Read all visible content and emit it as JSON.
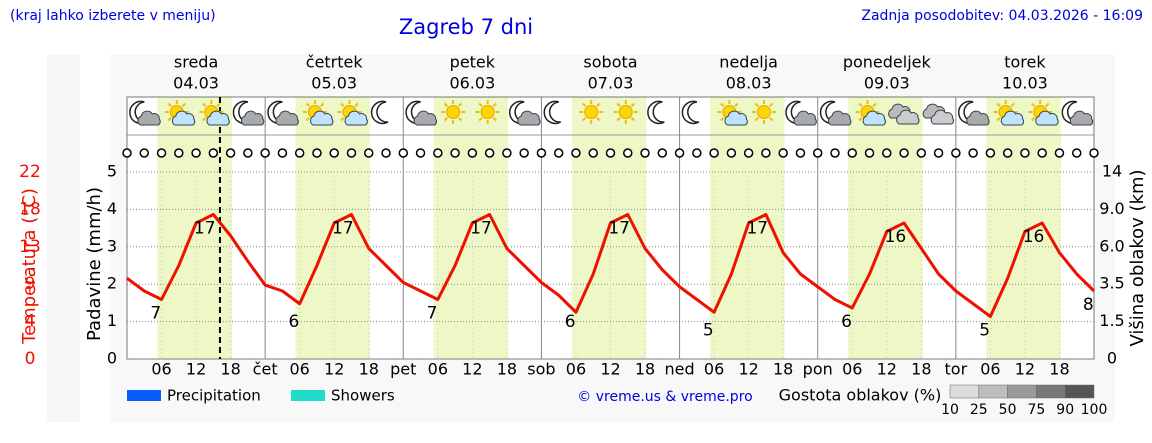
{
  "chart_data": {
    "type": "line",
    "title": "Zagreb 7 dni",
    "note": "(kraj lahko izberete v meniju)",
    "updated": "Zadnja posodobitev: 04.03.2026 - 16:09",
    "credit": "© vreme.us & vreme.pro",
    "days": [
      {
        "name": "sreda",
        "date": "04.03",
        "color": "#000000"
      },
      {
        "name": "četrtek",
        "date": "05.03",
        "color": "#000000"
      },
      {
        "name": "petek",
        "date": "06.03",
        "color": "#000000"
      },
      {
        "name": "sobota",
        "date": "07.03",
        "color": "#dd0000"
      },
      {
        "name": "nedelja",
        "date": "08.03",
        "color": "#dd0000"
      },
      {
        "name": "ponedeljek",
        "date": "09.03",
        "color": "#000000"
      },
      {
        "name": "torek",
        "date": "10.03",
        "color": "#000000"
      }
    ],
    "xlim": [
      0,
      168
    ],
    "xticks": [
      {
        "value": 6,
        "label": "06"
      },
      {
        "value": 12,
        "label": "12"
      },
      {
        "value": 18,
        "label": "18"
      },
      {
        "value": 24,
        "label": "čet"
      },
      {
        "value": 30,
        "label": "06"
      },
      {
        "value": 36,
        "label": "12"
      },
      {
        "value": 42,
        "label": "18"
      },
      {
        "value": 48,
        "label": "pet"
      },
      {
        "value": 54,
        "label": "06"
      },
      {
        "value": 60,
        "label": "12"
      },
      {
        "value": 66,
        "label": "18"
      },
      {
        "value": 72,
        "label": "sob"
      },
      {
        "value": 78,
        "label": "06"
      },
      {
        "value": 84,
        "label": "12"
      },
      {
        "value": 90,
        "label": "18"
      },
      {
        "value": 96,
        "label": "ned"
      },
      {
        "value": 102,
        "label": "06"
      },
      {
        "value": 108,
        "label": "12"
      },
      {
        "value": 114,
        "label": "18"
      },
      {
        "value": 120,
        "label": "pon"
      },
      {
        "value": 126,
        "label": "06"
      },
      {
        "value": 132,
        "label": "12"
      },
      {
        "value": 138,
        "label": "18"
      },
      {
        "value": 144,
        "label": "tor"
      },
      {
        "value": 150,
        "label": "06"
      },
      {
        "value": 156,
        "label": "12"
      },
      {
        "value": 162,
        "label": "18"
      }
    ],
    "now": 16.15,
    "ylabel": "Padavine (mm/h)",
    "ylim": [
      0,
      5
    ],
    "yticks": [
      0,
      1,
      2,
      3,
      4,
      5
    ],
    "grid": true,
    "temperature": {
      "label": "Temperatura (°C)",
      "color": "#ee1100",
      "ylim": [
        0,
        22
      ],
      "yticks": [
        0,
        {
          "value": 4.4,
          "label": "4"
        },
        {
          "value": 8.8,
          "label": "9"
        },
        {
          "value": 13.2,
          "label": "13"
        },
        {
          "value": 17.6,
          "label": "18"
        },
        22
      ],
      "x": [
        0,
        3,
        6,
        9,
        12,
        15,
        18,
        21,
        24,
        27,
        30,
        33,
        36,
        39,
        42,
        45,
        48,
        51,
        54,
        57,
        60,
        63,
        66,
        69,
        72,
        75,
        78,
        81,
        84,
        87,
        90,
        93,
        96,
        99,
        102,
        105,
        108,
        111,
        114,
        117,
        120,
        123,
        126,
        129,
        132,
        135,
        138,
        141,
        144,
        147,
        150,
        153,
        156,
        159,
        162,
        165,
        168
      ],
      "values": [
        9.5,
        8,
        7,
        11,
        16,
        17,
        14.5,
        11.5,
        8.7,
        8,
        6.5,
        11,
        16,
        17,
        13,
        11,
        9,
        8,
        7,
        11,
        16,
        17,
        13,
        11,
        9,
        7.5,
        5.5,
        10,
        16,
        17,
        13,
        10.5,
        8.5,
        7,
        5.5,
        10,
        16,
        17,
        12.5,
        10,
        8.5,
        7,
        6,
        10,
        15,
        16,
        13,
        10,
        8,
        6.5,
        5,
        9.5,
        15,
        16,
        12.5,
        10,
        8
      ],
      "labels": [
        {
          "x": 5,
          "value": 7
        },
        {
          "x": 13.5,
          "value": 17
        },
        {
          "x": 29,
          "value": 6
        },
        {
          "x": 37.5,
          "value": 17
        },
        {
          "x": 53,
          "value": 7
        },
        {
          "x": 61.5,
          "value": 17
        },
        {
          "x": 77,
          "value": 6
        },
        {
          "x": 85.5,
          "value": 17
        },
        {
          "x": 101,
          "value": 5
        },
        {
          "x": 109.5,
          "value": 17
        },
        {
          "x": 125,
          "value": 6
        },
        {
          "x": 133.5,
          "value": 16
        },
        {
          "x": 149,
          "value": 5
        },
        {
          "x": 157.5,
          "value": 16
        },
        {
          "x": 167,
          "value": 8
        }
      ]
    },
    "cloud_height": {
      "label": "Višina oblakov (km)",
      "ticks": [
        0,
        1.5,
        3.5,
        {
          "value": 6,
          "label": "6.0"
        },
        {
          "value": 9,
          "label": "9.0"
        },
        14
      ]
    },
    "legend": [
      {
        "name": "Precipitation",
        "color": "#0a5cff"
      },
      {
        "name": "Showers",
        "color": "#1fdcc8"
      }
    ],
    "cloud_legend": {
      "title": "Gostota oblakov (%)",
      "levels": [
        10,
        25,
        50,
        75,
        90,
        100
      ],
      "colors": [
        "#dcdcdc",
        "#bdbdbd",
        "#9a9a9a",
        "#787878",
        "#555555"
      ]
    }
  }
}
